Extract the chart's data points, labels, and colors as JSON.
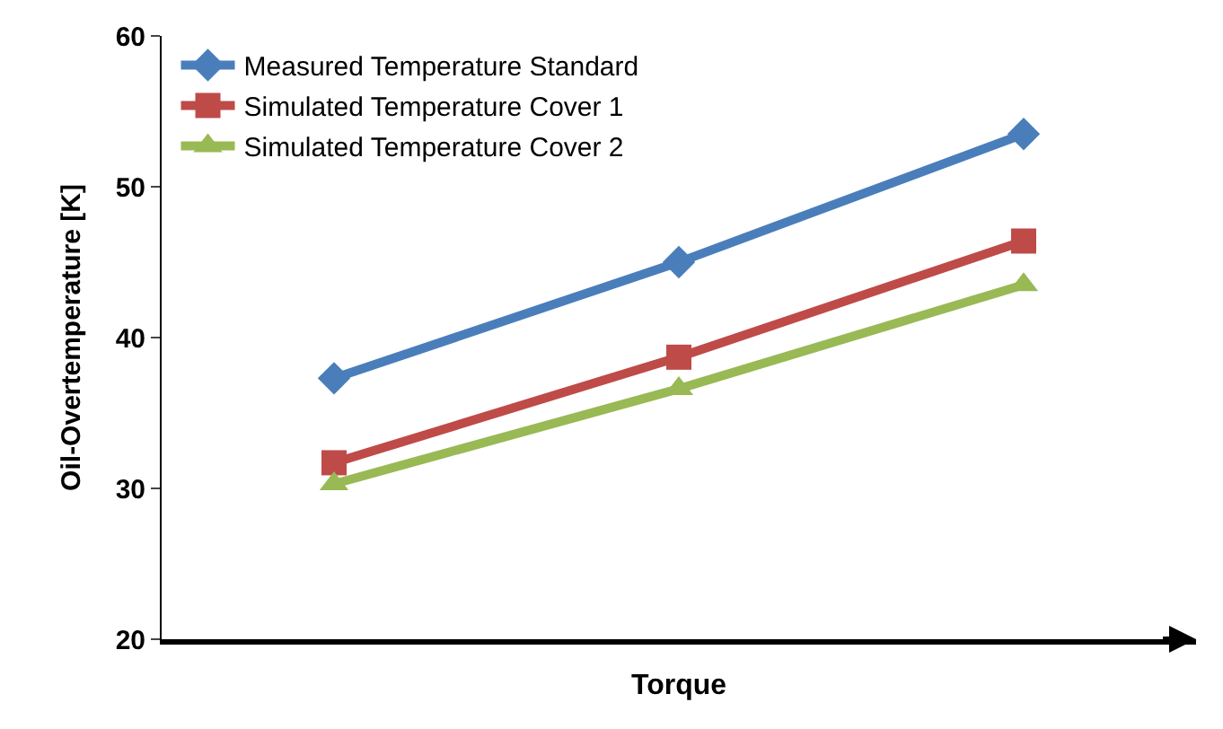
{
  "chart_data": {
    "type": "line",
    "xlabel": "Torque",
    "ylabel": "Oil-Overtemperature [K]",
    "categories": [
      null,
      null,
      null
    ],
    "series": [
      {
        "name": "Measured Temperature Standard",
        "color": "#4a7ebb",
        "marker": "diamond",
        "values": [
          37.3,
          45.0,
          53.5
        ]
      },
      {
        "name": "Simulated Temperature Cover 1",
        "color": "#be4b48",
        "marker": "square",
        "values": [
          31.7,
          38.7,
          46.4
        ]
      },
      {
        "name": "Simulated Temperature Cover 2",
        "color": "#98b954",
        "marker": "triangle",
        "values": [
          30.3,
          36.6,
          43.5
        ]
      }
    ],
    "ylim": [
      20,
      60
    ],
    "yticks": [
      20,
      30,
      40,
      50,
      60
    ],
    "legend": "top left",
    "line_style": "solid"
  }
}
